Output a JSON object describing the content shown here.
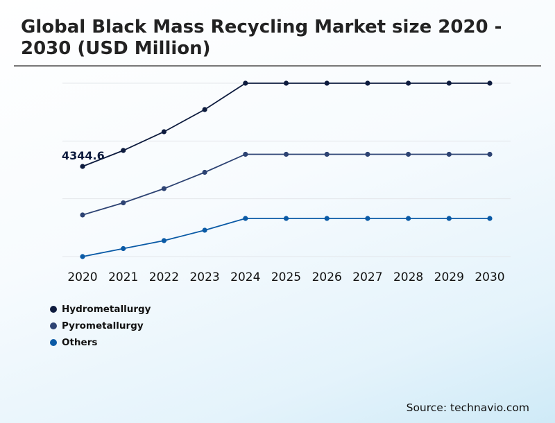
{
  "chart_data": {
    "type": "line",
    "title": "Global Black Mass Recycling Market size 2020 - 2030 (USD Million)",
    "categories": [
      "2020",
      "2021",
      "2022",
      "2023",
      "2024",
      "2025",
      "2026",
      "2027",
      "2028",
      "2029",
      "2030"
    ],
    "series": [
      {
        "name": "Hydrometallurgy",
        "color": "#0d1b3e",
        "values": [
          4344.6,
          5113,
          6016,
          7085,
          8355,
          8355,
          8355,
          8355,
          8355,
          8355,
          8355
        ]
      },
      {
        "name": "Pyrometallurgy",
        "color": "#2d4373",
        "values": [
          2005,
          2590,
          3275,
          4061,
          4930,
          4930,
          4930,
          4930,
          4930,
          4930,
          4930
        ]
      },
      {
        "name": "Others",
        "color": "#0a5aa6",
        "values": [
          0,
          384,
          769,
          1270,
          1838,
          1838,
          1838,
          1838,
          1838,
          1838,
          1838
        ]
      }
    ],
    "data_labels": [
      {
        "series": "Hydrometallurgy",
        "category": "2020",
        "text": "4344.6"
      }
    ],
    "grid": true,
    "legend": "bottom-left",
    "xlabel": "",
    "ylabel": ""
  },
  "source": "Source: technavio.com"
}
